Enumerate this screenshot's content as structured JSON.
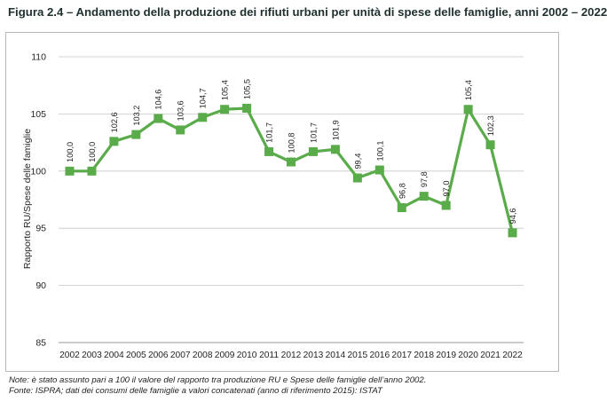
{
  "title": "Figura 2.4 – Andamento della produzione dei rifiuti urbani per unità di spese delle famiglie, anni 2002 – 2022",
  "notes": [
    "Note: è stato assunto pari a 100 il valore del rapporto tra produzione RU e Spese delle famiglie dell’anno 2002.",
    "Fonte: ISPRA; dati dei consumi delle famiglie a valori concatenati (anno di riferimento 2015): ISTAT"
  ],
  "chart_data": {
    "type": "line",
    "ylabel": "Rapporto RU/Spese delle famiglie",
    "xlabel": "",
    "ylim": [
      85,
      110
    ],
    "yticks": [
      85,
      90,
      95,
      100,
      105,
      110
    ],
    "grid": "horizontal",
    "color": "#5aab4a",
    "categories": [
      "2002",
      "2003",
      "2004",
      "2005",
      "2006",
      "2007",
      "2008",
      "2009",
      "2010",
      "2011",
      "2012",
      "2013",
      "2014",
      "2015",
      "2016",
      "2017",
      "2018",
      "2019",
      "2020",
      "2021",
      "2022"
    ],
    "values": [
      100.0,
      100.0,
      102.6,
      103.2,
      104.6,
      103.6,
      104.7,
      105.4,
      105.5,
      101.7,
      100.8,
      101.7,
      101.9,
      99.4,
      100.1,
      96.8,
      97.8,
      97.0,
      105.4,
      102.3,
      94.6
    ],
    "data_labels": [
      "100,0",
      "100,0",
      "102,6",
      "103,2",
      "104,6",
      "103,6",
      "104,7",
      "105,4",
      "105,5",
      "101,7",
      "100,8",
      "101,7",
      "101,9",
      "99,4",
      "100,1",
      "96,8",
      "97,8",
      "97,0",
      "105,4",
      "102,3",
      "94,6"
    ]
  }
}
